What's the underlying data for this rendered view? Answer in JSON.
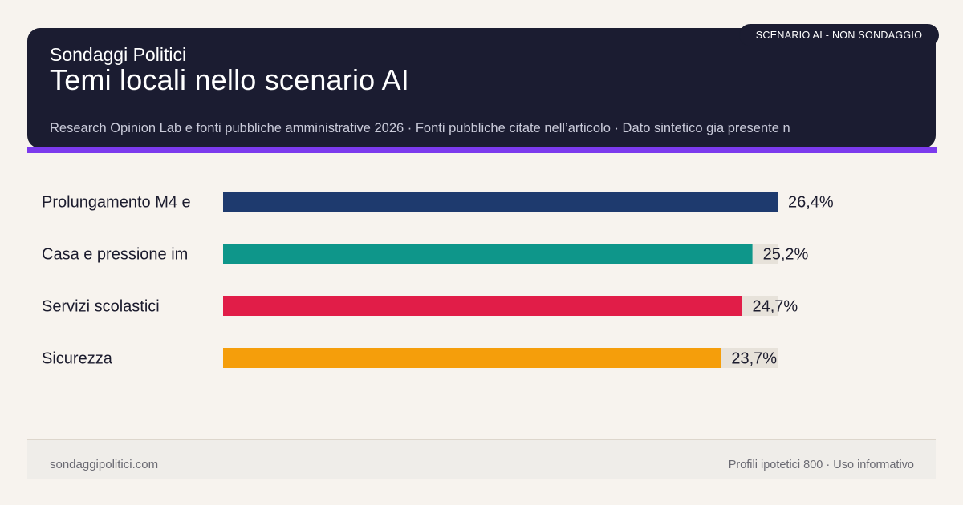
{
  "header": {
    "brand": "Sondaggi Politici",
    "title": "Temi locali nello scenario AI",
    "subtitle": "Research Opinion Lab e fonti pubbliche amministrative 2026 · Fonti pubbliche citate nell’articolo · Dato sintetico gia presente n",
    "badge": "SCENARIO AI - NON SONDAGGIO"
  },
  "footer": {
    "site": "sondaggipolitici.com",
    "note": "Profili ipotetici 800 · Uso informativo"
  },
  "colors": {
    "header_bg": "#1b1c31",
    "accent": "#7c3aed",
    "track": "#e7e2da"
  },
  "chart_data": {
    "type": "bar",
    "orientation": "horizontal",
    "categories": [
      "Prolungamento M4 e",
      "Casa e pressione im",
      "Servizi scolastici",
      "Sicurezza"
    ],
    "values": [
      26.4,
      25.2,
      24.7,
      23.7
    ],
    "value_labels": [
      "26,4%",
      "25,2%",
      "24,7%",
      "23,7%"
    ],
    "bar_colors": [
      "#1e3a6e",
      "#0e968a",
      "#e11d48",
      "#f59e0b"
    ],
    "xlim": [
      0,
      26.4
    ],
    "grid": false,
    "legend": "none"
  }
}
